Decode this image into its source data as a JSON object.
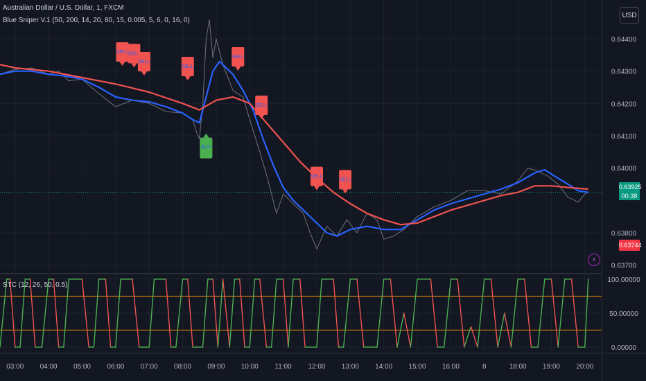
{
  "header": {
    "symbol": "Australian Dollar / U.S. Dollar, 1, FXCM",
    "indicator": "Blue Sniper V.1 (50, 200, 14, 20, 80, 15, 0.005, 5, 6, 0, 16, 0)",
    "stc_label": "STC (12, 26, 50, 0.5)",
    "currency_button": "USD"
  },
  "price_scale": {
    "last_price": "0.63925",
    "countdown": "00:38",
    "ma_price": "0.63744",
    "last_color": "#089981",
    "ma_color": "#f23645"
  },
  "icons": {
    "flash": "lightning-icon"
  },
  "chart_data": [
    {
      "type": "line",
      "title": "",
      "y_ticks": [
        0.644,
        0.643,
        0.642,
        0.641,
        0.64,
        0.638,
        0.637
      ],
      "y_tick_labels": [
        "0.64400",
        "0.64300",
        "0.64200",
        "0.64100",
        "0.64000",
        "0.63800",
        "0.63700"
      ],
      "ylim": [
        0.6368,
        0.6452
      ],
      "x_ticks": [
        "03:00",
        "04:00",
        "05:00",
        "06:00",
        "07:00",
        "08:00",
        "09:00",
        "10:00",
        "11:00",
        "12:00",
        "13:00",
        "14:00",
        "15:00",
        "16:00",
        "8",
        "18:00",
        "19:00",
        "20:00"
      ],
      "xlim": [
        2.55,
        20.5
      ],
      "x_unit": "hours",
      "price_x": [
        2.55,
        3.0,
        3.5,
        4.0,
        4.3,
        4.6,
        5.0,
        5.5,
        6.0,
        6.5,
        7.0,
        7.5,
        8.0,
        8.3,
        8.4,
        8.5,
        8.6,
        8.7,
        8.8,
        8.9,
        9.0,
        9.2,
        9.5,
        9.8,
        10.0,
        10.3,
        10.5,
        10.8,
        11.0,
        11.3,
        11.6,
        11.8,
        12.0,
        12.3,
        12.6,
        12.9,
        13.2,
        13.5,
        13.8,
        14.0,
        14.3,
        14.6,
        15.0,
        15.5,
        16.0,
        16.5,
        17.0,
        17.5,
        18.0,
        18.3,
        18.6,
        18.9,
        19.2,
        19.5,
        19.8,
        20.0,
        20.1
      ],
      "price_y": [
        0.6429,
        0.64305,
        0.6431,
        0.6429,
        0.643,
        0.6427,
        0.64275,
        0.6423,
        0.6419,
        0.6421,
        0.642,
        0.64175,
        0.6417,
        0.6415,
        0.64115,
        0.6409,
        0.642,
        0.644,
        0.6446,
        0.6434,
        0.644,
        0.6432,
        0.6424,
        0.6422,
        0.6415,
        0.6405,
        0.6398,
        0.6386,
        0.6392,
        0.6389,
        0.6386,
        0.638,
        0.6375,
        0.6382,
        0.6379,
        0.6384,
        0.638,
        0.6386,
        0.6384,
        0.6378,
        0.6379,
        0.6381,
        0.6385,
        0.6388,
        0.639,
        0.6393,
        0.6393,
        0.6392,
        0.6396,
        0.64,
        0.6399,
        0.63975,
        0.6395,
        0.6391,
        0.63895,
        0.6392,
        0.63925
      ],
      "series": [
        {
          "name": "",
          "color": "#2962ff",
          "x": [
            2.55,
            3.0,
            3.5,
            4.0,
            4.5,
            5.0,
            5.5,
            6.0,
            6.5,
            7.0,
            7.5,
            8.0,
            8.3,
            8.5,
            8.7,
            8.9,
            9.1,
            9.5,
            9.8,
            10.1,
            10.4,
            10.7,
            11.0,
            11.3,
            11.6,
            12.0,
            12.3,
            12.6,
            13.0,
            13.5,
            14.0,
            14.5,
            15.0,
            15.5,
            16.0,
            16.5,
            17.0,
            17.5,
            18.0,
            18.5,
            18.8,
            19.1,
            19.5,
            19.8,
            20.1
          ],
          "values": [
            0.6429,
            0.643,
            0.643,
            0.6429,
            0.64285,
            0.64275,
            0.6425,
            0.6422,
            0.6421,
            0.64205,
            0.6419,
            0.6417,
            0.6415,
            0.6414,
            0.6422,
            0.643,
            0.6433,
            0.6429,
            0.6424,
            0.6418,
            0.6409,
            0.6401,
            0.6394,
            0.639,
            0.6387,
            0.6383,
            0.638,
            0.6379,
            0.6381,
            0.6382,
            0.6381,
            0.6381,
            0.6384,
            0.6387,
            0.6389,
            0.63905,
            0.6392,
            0.63935,
            0.63955,
            0.63985,
            0.63995,
            0.63975,
            0.6395,
            0.6393,
            0.63925
          ]
        },
        {
          "name": "",
          "color": "#f05350",
          "x": [
            2.55,
            3.0,
            4.0,
            5.0,
            6.0,
            7.0,
            8.0,
            8.5,
            9.0,
            9.5,
            10.0,
            10.5,
            11.0,
            11.5,
            12.0,
            12.5,
            13.0,
            13.5,
            14.0,
            14.5,
            15.0,
            15.5,
            16.0,
            16.5,
            17.0,
            17.5,
            18.0,
            18.5,
            19.0,
            19.5,
            20.1
          ],
          "values": [
            0.6432,
            0.6431,
            0.643,
            0.6428,
            0.6426,
            0.64235,
            0.642,
            0.6418,
            0.6421,
            0.6422,
            0.642,
            0.6414,
            0.6408,
            0.6402,
            0.6397,
            0.63925,
            0.6389,
            0.6386,
            0.6384,
            0.63825,
            0.6383,
            0.6385,
            0.6387,
            0.63885,
            0.639,
            0.63915,
            0.63925,
            0.63945,
            0.63945,
            0.6394,
            0.63935
          ]
        }
      ],
      "annotations": [
        {
          "label": "SELL",
          "x": 6.2,
          "y": 0.64385,
          "kind": "sell"
        },
        {
          "label": "SELL",
          "x": 6.55,
          "y": 0.6438,
          "kind": "sell"
        },
        {
          "label": "SELL",
          "x": 6.85,
          "y": 0.64355,
          "kind": "sell"
        },
        {
          "label": "SELL",
          "x": 8.15,
          "y": 0.6434,
          "kind": "sell"
        },
        {
          "label": "SELL",
          "x": 9.65,
          "y": 0.6437,
          "kind": "sell"
        },
        {
          "label": "SELL",
          "x": 10.35,
          "y": 0.6422,
          "kind": "sell"
        },
        {
          "label": "SELL",
          "x": 12.0,
          "y": 0.64,
          "kind": "sell"
        },
        {
          "label": "SELL",
          "x": 12.85,
          "y": 0.6399,
          "kind": "sell"
        },
        {
          "label": "BUY",
          "x": 8.7,
          "y": 0.6409,
          "kind": "buy"
        }
      ],
      "last_price_line": 0.63925,
      "grid": true
    },
    {
      "type": "line",
      "title": "",
      "y_ticks": [
        100,
        50,
        0
      ],
      "y_tick_labels": [
        "100.00000",
        "50.00000",
        "0.00000"
      ],
      "ylim": [
        -5,
        105
      ],
      "levels": [
        75,
        25
      ],
      "level_color": "#ff9800",
      "x": [
        2.55,
        2.75,
        2.85,
        3.0,
        3.15,
        3.3,
        3.45,
        3.6,
        3.8,
        4.0,
        4.15,
        4.3,
        4.45,
        4.6,
        4.75,
        5.0,
        5.2,
        5.35,
        5.5,
        5.7,
        5.85,
        6.0,
        6.15,
        6.3,
        6.5,
        6.7,
        6.85,
        7.0,
        7.15,
        7.3,
        7.5,
        7.65,
        7.8,
        8.0,
        8.15,
        8.3,
        8.45,
        8.6,
        8.75,
        8.9,
        9.05,
        9.2,
        9.4,
        9.55,
        9.7,
        9.85,
        10.0,
        10.15,
        10.3,
        10.5,
        10.65,
        10.8,
        11.0,
        11.15,
        11.3,
        11.5,
        11.65,
        11.8,
        12.0,
        12.15,
        12.3,
        12.5,
        12.65,
        12.8,
        13.0,
        13.2,
        13.4,
        13.6,
        13.8,
        14.0,
        14.2,
        14.4,
        14.6,
        14.8,
        15.0,
        15.2,
        15.4,
        15.6,
        15.8,
        16.0,
        16.2,
        16.4,
        16.6,
        16.8,
        17.0,
        17.2,
        17.4,
        17.6,
        17.8,
        18.0,
        18.2,
        18.4,
        18.6,
        18.8,
        19.0,
        19.2,
        19.4,
        19.6,
        19.8,
        20.0,
        20.1
      ],
      "values": [
        0,
        100,
        100,
        0,
        0,
        100,
        100,
        0,
        0,
        100,
        100,
        0,
        0,
        100,
        100,
        100,
        0,
        0,
        100,
        100,
        0,
        0,
        100,
        100,
        100,
        0,
        0,
        0,
        100,
        100,
        100,
        0,
        0,
        100,
        100,
        0,
        0,
        0,
        100,
        100,
        0,
        100,
        0,
        100,
        100,
        0,
        0,
        100,
        100,
        0,
        0,
        100,
        100,
        0,
        100,
        100,
        0,
        0,
        0,
        100,
        100,
        100,
        0,
        0,
        100,
        100,
        0,
        0,
        0,
        100,
        100,
        0,
        50,
        0,
        100,
        100,
        100,
        0,
        0,
        100,
        100,
        0,
        30,
        0,
        100,
        100,
        0,
        50,
        0,
        100,
        100,
        0,
        0,
        100,
        100,
        0,
        100,
        100,
        0,
        0,
        100
      ],
      "color_up": "#4caf50",
      "color_down": "#f05350",
      "grid": true
    }
  ]
}
